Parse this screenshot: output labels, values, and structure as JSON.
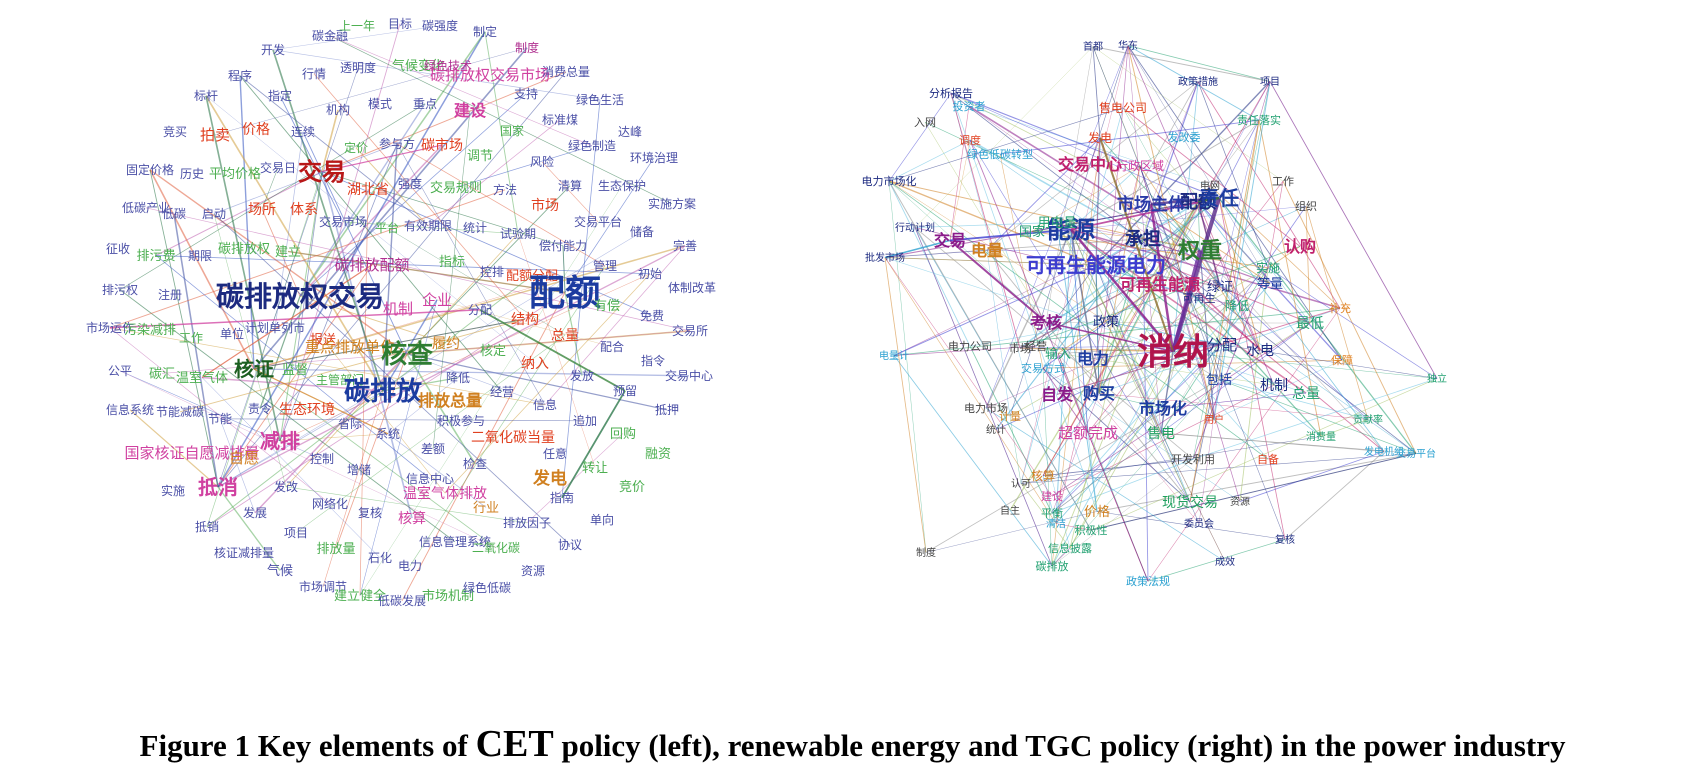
{
  "caption": {
    "prefix": "Figure 1 Key elements of ",
    "highlight": "CET",
    "suffix": " policy (left), renewable energy and TGC policy (right) in the power industry"
  },
  "networks": [
    {
      "id": "cet",
      "nodes": [
        {
          "t": "碳金融",
          "c": "#4a4fa6"
        },
        {
          "t": "上一年",
          "c": "#4caf50"
        },
        {
          "t": "目标",
          "c": "#4a4fa6"
        },
        {
          "t": "碳强度",
          "c": "#4a4fa6"
        },
        {
          "t": "制定",
          "c": "#4a4fa6"
        },
        {
          "t": "开发",
          "c": "#4a4fa6"
        },
        {
          "t": "制度",
          "c": "#b03090"
        },
        {
          "t": "气候变化",
          "c": "#4caf50"
        },
        {
          "t": "绿色技术",
          "c": "#b03090"
        },
        {
          "t": "透明度",
          "c": "#4a4fa6"
        },
        {
          "t": "碳排放权交易市场",
          "c": "#d040a0"
        },
        {
          "t": "消费总量",
          "c": "#4a4fa6"
        },
        {
          "t": "程序",
          "c": "#4a4fa6"
        },
        {
          "t": "行情",
          "c": "#4a4fa6"
        },
        {
          "t": "支持",
          "c": "#4a4fa6"
        },
        {
          "t": "指定",
          "c": "#4a4fa6"
        },
        {
          "t": "模式",
          "c": "#4a4fa6"
        },
        {
          "t": "重点",
          "c": "#4a4fa6"
        },
        {
          "t": "绿色生活",
          "c": "#4a4fa6"
        },
        {
          "t": "标杆",
          "c": "#4a4fa6"
        },
        {
          "t": "机构",
          "c": "#4a4fa6"
        },
        {
          "t": "建设",
          "c": "#d040a0"
        },
        {
          "t": "标准煤",
          "c": "#4a4fa6"
        },
        {
          "t": "价格",
          "c": "#e04020"
        },
        {
          "t": "国家",
          "c": "#4caf50"
        },
        {
          "t": "竞买",
          "c": "#4a4fa6"
        },
        {
          "t": "拍卖",
          "c": "#e04020"
        },
        {
          "t": "连续",
          "c": "#4a4fa6"
        },
        {
          "t": "定价",
          "c": "#4caf50"
        },
        {
          "t": "达峰",
          "c": "#4a4fa6"
        },
        {
          "t": "参与方",
          "c": "#4a4fa6"
        },
        {
          "t": "碳市场",
          "c": "#e04020"
        },
        {
          "t": "绿色制造",
          "c": "#4a4fa6"
        },
        {
          "t": "风险",
          "c": "#4a4fa6"
        },
        {
          "t": "调节",
          "c": "#4caf50"
        },
        {
          "t": "环境治理",
          "c": "#4a4fa6"
        },
        {
          "t": "固定价格",
          "c": "#4a4fa6"
        },
        {
          "t": "交易日",
          "c": "#4a4fa6"
        },
        {
          "t": "交易",
          "c": "#b81818"
        },
        {
          "t": "历史",
          "c": "#4a4fa6"
        },
        {
          "t": "平均价格",
          "c": "#4caf50"
        },
        {
          "t": "强度",
          "c": "#4a4fa6"
        },
        {
          "t": "湖北省",
          "c": "#e04020"
        },
        {
          "t": "交易规则",
          "c": "#4caf50"
        },
        {
          "t": "方法",
          "c": "#4a4fa6"
        },
        {
          "t": "清算",
          "c": "#4a4fa6"
        },
        {
          "t": "生态保护",
          "c": "#4a4fa6"
        },
        {
          "t": "低碳产业",
          "c": "#4a4fa6"
        },
        {
          "t": "低碳",
          "c": "#4a4fa6"
        },
        {
          "t": "启动",
          "c": "#4a4fa6"
        },
        {
          "t": "场所",
          "c": "#e04020"
        },
        {
          "t": "体系",
          "c": "#e04020"
        },
        {
          "t": "市场",
          "c": "#e04020"
        },
        {
          "t": "实施方案",
          "c": "#4a4fa6"
        },
        {
          "t": "交易市场",
          "c": "#4a4fa6"
        },
        {
          "t": "平台",
          "c": "#4caf50"
        },
        {
          "t": "有效期限",
          "c": "#4a4fa6"
        },
        {
          "t": "统计",
          "c": "#4a4fa6"
        },
        {
          "t": "交易平台",
          "c": "#4a4fa6"
        },
        {
          "t": "储备",
          "c": "#4a4fa6"
        },
        {
          "t": "征收",
          "c": "#4a4fa6"
        },
        {
          "t": "排污费",
          "c": "#4caf50"
        },
        {
          "t": "期限",
          "c": "#4a4fa6"
        },
        {
          "t": "碳排放权",
          "c": "#4caf50"
        },
        {
          "t": "建立",
          "c": "#4caf50"
        },
        {
          "t": "试验期",
          "c": "#4a4fa6"
        },
        {
          "t": "偿付能力",
          "c": "#4a4fa6"
        },
        {
          "t": "完善",
          "c": "#4a4fa6"
        },
        {
          "t": "排污权",
          "c": "#4a4fa6"
        },
        {
          "t": "注册",
          "c": "#4a4fa6"
        },
        {
          "t": "碳排放权交易",
          "c": "#1c2a80"
        },
        {
          "t": "碳排放配额",
          "c": "#b03090"
        },
        {
          "t": "指标",
          "c": "#4caf50"
        },
        {
          "t": "管理",
          "c": "#4a4fa6"
        },
        {
          "t": "初始",
          "c": "#4a4fa6"
        },
        {
          "t": "体制改革",
          "c": "#4a4fa6"
        },
        {
          "t": "控排",
          "c": "#4a4fa6"
        },
        {
          "t": "配额分配",
          "c": "#e04020"
        },
        {
          "t": "配额",
          "c": "#1c3ca0"
        },
        {
          "t": "市场运作",
          "c": "#4a4fa6"
        },
        {
          "t": "污染减排",
          "c": "#4caf50"
        },
        {
          "t": "企业",
          "c": "#d040a0"
        },
        {
          "t": "有偿",
          "c": "#4caf50"
        },
        {
          "t": "免费",
          "c": "#4a4fa6"
        },
        {
          "t": "交易所",
          "c": "#4a4fa6"
        },
        {
          "t": "单位",
          "c": "#4a4fa6"
        },
        {
          "t": "计划单列市",
          "c": "#4a4fa6"
        },
        {
          "t": "机制",
          "c": "#d040a0"
        },
        {
          "t": "分配",
          "c": "#4a4fa6"
        },
        {
          "t": "结构",
          "c": "#e04020"
        },
        {
          "t": "工作",
          "c": "#4caf50"
        },
        {
          "t": "报送",
          "c": "#e04020"
        },
        {
          "t": "履约",
          "c": "#d08020"
        },
        {
          "t": "总量",
          "c": "#e04020"
        },
        {
          "t": "配合",
          "c": "#4a4fa6"
        },
        {
          "t": "公平",
          "c": "#4a4fa6"
        },
        {
          "t": "重点排放单位",
          "c": "#d08020"
        },
        {
          "t": "核查",
          "c": "#2e7d32"
        },
        {
          "t": "核定",
          "c": "#4caf50"
        },
        {
          "t": "指令",
          "c": "#4a4fa6"
        },
        {
          "t": "碳汇",
          "c": "#4caf50"
        },
        {
          "t": "温室气体",
          "c": "#4caf50"
        },
        {
          "t": "核证",
          "c": "#1b5e20"
        },
        {
          "t": "监督",
          "c": "#4caf50"
        },
        {
          "t": "纳入",
          "c": "#e04020"
        },
        {
          "t": "发放",
          "c": "#4a4fa6"
        },
        {
          "t": "交易中心",
          "c": "#4a4fa6"
        },
        {
          "t": "主管部门",
          "c": "#4caf50"
        },
        {
          "t": "碳排放",
          "c": "#1c3ca0"
        },
        {
          "t": "降低",
          "c": "#4a4fa6"
        },
        {
          "t": "预留",
          "c": "#4a4fa6"
        },
        {
          "t": "信息系统",
          "c": "#4a4fa6"
        },
        {
          "t": "节能减碳",
          "c": "#4a4fa6"
        },
        {
          "t": "经营",
          "c": "#4a4fa6"
        },
        {
          "t": "排放总量",
          "c": "#d08020"
        },
        {
          "t": "信息",
          "c": "#4a4fa6"
        },
        {
          "t": "抵押",
          "c": "#4a4fa6"
        },
        {
          "t": "节能",
          "c": "#4a4fa6"
        },
        {
          "t": "责令",
          "c": "#4a4fa6"
        },
        {
          "t": "生态环境",
          "c": "#e04020"
        },
        {
          "t": "省际",
          "c": "#4a4fa6"
        },
        {
          "t": "积极参与",
          "c": "#4a4fa6"
        },
        {
          "t": "追加",
          "c": "#4a4fa6"
        },
        {
          "t": "系统",
          "c": "#4a4fa6"
        },
        {
          "t": "二氧化碳当量",
          "c": "#e04020"
        },
        {
          "t": "回购",
          "c": "#4caf50"
        },
        {
          "t": "融资",
          "c": "#4caf50"
        },
        {
          "t": "国家核证自愿减排量",
          "c": "#d040a0"
        },
        {
          "t": "减排",
          "c": "#d040a0"
        },
        {
          "t": "自愿",
          "c": "#d08020"
        },
        {
          "t": "差额",
          "c": "#4a4fa6"
        },
        {
          "t": "任意",
          "c": "#4a4fa6"
        },
        {
          "t": "控制",
          "c": "#4a4fa6"
        },
        {
          "t": "增储",
          "c": "#4a4fa6"
        },
        {
          "t": "检查",
          "c": "#4a4fa6"
        },
        {
          "t": "转让",
          "c": "#4caf50"
        },
        {
          "t": "发电",
          "c": "#d08020"
        },
        {
          "t": "竞价",
          "c": "#4caf50"
        },
        {
          "t": "实施",
          "c": "#4a4fa6"
        },
        {
          "t": "发改",
          "c": "#4a4fa6"
        },
        {
          "t": "信息中心",
          "c": "#4a4fa6"
        },
        {
          "t": "抵消",
          "c": "#d040a0"
        },
        {
          "t": "网络化",
          "c": "#4a4fa6"
        },
        {
          "t": "温室气体排放",
          "c": "#d040a0"
        },
        {
          "t": "行业",
          "c": "#d08020"
        },
        {
          "t": "指南",
          "c": "#4a4fa6"
        },
        {
          "t": "发展",
          "c": "#4a4fa6"
        },
        {
          "t": "复核",
          "c": "#4a4fa6"
        },
        {
          "t": "核算",
          "c": "#d040a0"
        },
        {
          "t": "排放因子",
          "c": "#4a4fa6"
        },
        {
          "t": "单向",
          "c": "#4a4fa6"
        },
        {
          "t": "抵销",
          "c": "#4a4fa6"
        },
        {
          "t": "项目",
          "c": "#4a4fa6"
        },
        {
          "t": "信息管理系统",
          "c": "#4a4fa6"
        },
        {
          "t": "协议",
          "c": "#4a4fa6"
        },
        {
          "t": "核证减排量",
          "c": "#4a4fa6"
        },
        {
          "t": "排放量",
          "c": "#4caf50"
        },
        {
          "t": "石化",
          "c": "#4a4fa6"
        },
        {
          "t": "电力",
          "c": "#4a4fa6"
        },
        {
          "t": "二氧化碳",
          "c": "#4caf50"
        },
        {
          "t": "气候",
          "c": "#4a4fa6"
        },
        {
          "t": "资源",
          "c": "#4a4fa6"
        },
        {
          "t": "市场调节",
          "c": "#4a4fa6"
        },
        {
          "t": "建立健全",
          "c": "#4caf50"
        },
        {
          "t": "市场机制",
          "c": "#4caf50"
        },
        {
          "t": "绿色低碳",
          "c": "#4a4fa6"
        },
        {
          "t": "低碳发展",
          "c": "#4a4fa6"
        }
      ]
    },
    {
      "id": "tgc",
      "nodes": [
        {
          "t": "消纳",
          "c": "#b0144c"
        },
        {
          "t": "配额",
          "c": "#1c2a80"
        },
        {
          "t": "能源",
          "c": "#1c3ca0"
        },
        {
          "t": "可再生能源电力",
          "c": "#3c3cd0"
        },
        {
          "t": "市场主体",
          "c": "#2a3aa8"
        },
        {
          "t": "责任",
          "c": "#1c3ca0"
        },
        {
          "t": "权重",
          "c": "#2e7d32"
        },
        {
          "t": "交易中心",
          "c": "#c0206c"
        },
        {
          "t": "交易",
          "c": "#8a1a8a"
        },
        {
          "t": "电量",
          "c": "#d08020"
        },
        {
          "t": "承担",
          "c": "#1c2a80"
        },
        {
          "t": "可再生能源",
          "c": "#c0206c"
        },
        {
          "t": "认购",
          "c": "#c0206c"
        },
        {
          "t": "考核",
          "c": "#8a1a8a"
        },
        {
          "t": "电力",
          "c": "#1c3ca0"
        },
        {
          "t": "自发",
          "c": "#8a1a8a"
        },
        {
          "t": "购买",
          "c": "#1c3ca0"
        },
        {
          "t": "市场化",
          "c": "#1c3ca0"
        },
        {
          "t": "分配",
          "c": "#1c2a80"
        },
        {
          "t": "水电",
          "c": "#1c2a80"
        },
        {
          "t": "机制",
          "c": "#1c2a80"
        },
        {
          "t": "绿证",
          "c": "#1c2a80"
        },
        {
          "t": "等量",
          "c": "#1c3ca0"
        },
        {
          "t": "最低",
          "c": "#20a070"
        },
        {
          "t": "总量",
          "c": "#20a070"
        },
        {
          "t": "超额完成",
          "c": "#d040a0"
        },
        {
          "t": "售电",
          "c": "#20a060"
        },
        {
          "t": "现货交易",
          "c": "#20a060"
        },
        {
          "t": "价格",
          "c": "#d08020"
        },
        {
          "t": "核算",
          "c": "#d08020"
        },
        {
          "t": "政策",
          "c": "#1c2a80"
        },
        {
          "t": "用电量",
          "c": "#20a070"
        },
        {
          "t": "国家",
          "c": "#20a070"
        },
        {
          "t": "实施",
          "c": "#20a070"
        },
        {
          "t": "包括",
          "c": "#1c3ca0"
        },
        {
          "t": "输入",
          "c": "#20a070"
        },
        {
          "t": "发电",
          "c": "#e04020"
        },
        {
          "t": "行政区域",
          "c": "#d040a0"
        },
        {
          "t": "电力公司",
          "c": "#444444"
        },
        {
          "t": "电力市场",
          "c": "#444444"
        },
        {
          "t": "降低",
          "c": "#20a070"
        },
        {
          "t": "补充",
          "c": "#e08020"
        },
        {
          "t": "保障",
          "c": "#e08020"
        },
        {
          "t": "投资者",
          "c": "#2aa0d0"
        },
        {
          "t": "分析报告",
          "c": "#1c2a80"
        },
        {
          "t": "入网",
          "c": "#444444"
        },
        {
          "t": "电力市场化",
          "c": "#1c2a80"
        },
        {
          "t": "行动计划",
          "c": "#1c2a80"
        },
        {
          "t": "批发市场",
          "c": "#1c2a80"
        },
        {
          "t": "绿色低碳转型",
          "c": "#2aa0d0"
        },
        {
          "t": "组织",
          "c": "#444444"
        },
        {
          "t": "工作",
          "c": "#444444"
        },
        {
          "t": "电网",
          "c": "#444444"
        },
        {
          "t": "可再生",
          "c": "#1c2a80"
        },
        {
          "t": "计量",
          "c": "#d08020"
        },
        {
          "t": "调度",
          "c": "#e04020"
        },
        {
          "t": "交易方式",
          "c": "#2aa0d0"
        },
        {
          "t": "市场",
          "c": "#444444"
        },
        {
          "t": "经营",
          "c": "#444444"
        },
        {
          "t": "电量计",
          "c": "#2aa0d0"
        },
        {
          "t": "开发利用",
          "c": "#444444"
        },
        {
          "t": "自备",
          "c": "#e04020"
        },
        {
          "t": "发电机组",
          "c": "#2aa0d0"
        },
        {
          "t": "自主",
          "c": "#444444"
        },
        {
          "t": "信息披露",
          "c": "#20a070"
        },
        {
          "t": "政策法规",
          "c": "#2aa0d0"
        },
        {
          "t": "碳排放",
          "c": "#20a070"
        },
        {
          "t": "华东",
          "c": "#1c2a80"
        },
        {
          "t": "首都",
          "c": "#1c2a80"
        },
        {
          "t": "政策措施",
          "c": "#1c2a80"
        },
        {
          "t": "项目",
          "c": "#1c2a80"
        },
        {
          "t": "责任落实",
          "c": "#20a070"
        },
        {
          "t": "发改委",
          "c": "#2aa0d0"
        },
        {
          "t": "售电公司",
          "c": "#e04020"
        },
        {
          "t": "资源",
          "c": "#444444"
        },
        {
          "t": "用户",
          "c": "#e04020"
        },
        {
          "t": "认可",
          "c": "#444444"
        },
        {
          "t": "制度",
          "c": "#444444"
        },
        {
          "t": "建设",
          "c": "#d040a0"
        },
        {
          "t": "平衡",
          "c": "#20a070"
        },
        {
          "t": "委员会",
          "c": "#1c2a80"
        },
        {
          "t": "复核",
          "c": "#1c2a80"
        },
        {
          "t": "消费量",
          "c": "#20a070"
        },
        {
          "t": "贡献率",
          "c": "#20a070"
        },
        {
          "t": "独立",
          "c": "#20a070"
        },
        {
          "t": "交易平台",
          "c": "#2aa0d0"
        },
        {
          "t": "成效",
          "c": "#1c2a80"
        },
        {
          "t": "积极性",
          "c": "#20a070"
        },
        {
          "t": "清洁",
          "c": "#2aa0d0"
        },
        {
          "t": "统计",
          "c": "#444444"
        }
      ]
    }
  ]
}
